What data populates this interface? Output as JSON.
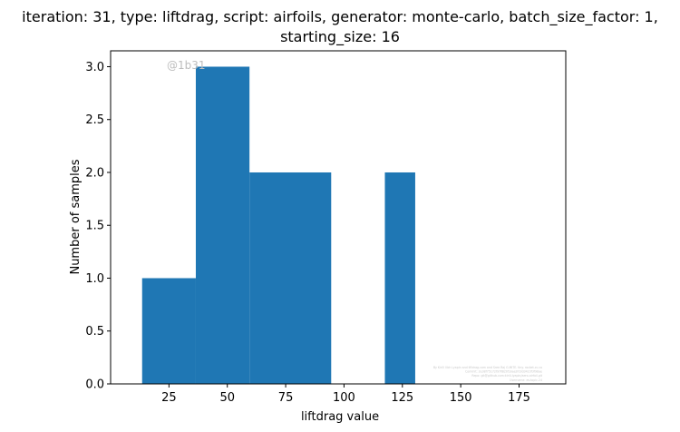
{
  "chart_data": {
    "type": "bar",
    "title": "iteration: 31, type: liftdrag, script: airfoils, generator: monte-carlo, batch_size_factor: 1,",
    "title_line2": "starting_size: 16",
    "xlabel": "liftdrag value",
    "ylabel": "Number of samples",
    "xlim": [
      0,
      195
    ],
    "ylim": [
      0,
      3.15
    ],
    "x_ticks": [
      25,
      50,
      75,
      100,
      125,
      150,
      175
    ],
    "y_ticks": [
      0.0,
      0.5,
      1.0,
      1.5,
      2.0,
      2.5,
      3.0
    ],
    "bins": [
      {
        "x0": 13.5,
        "x1": 36.5,
        "count": 1
      },
      {
        "x0": 36.5,
        "x1": 59.5,
        "count": 3
      },
      {
        "x0": 59.5,
        "x1": 94.5,
        "count": 2
      },
      {
        "x0": 117.5,
        "x1": 130.5,
        "count": 2
      }
    ],
    "bar_color": "#1f77b4",
    "grid": false,
    "watermark": "@1b31",
    "footnote_lines": [
      "By Kirill Ilich Lyapin and liftdrag.com and Sree Raj G.MITE. tiny. rocket.cc.co",
      "Commit: 2e38f75172f97f8b5fb3aa2fd3d3423f3f98ae",
      "Repo: git@github.com:kirill-lyapin/aero-airfoil.git",
      "Username: ev.topic.24"
    ]
  }
}
